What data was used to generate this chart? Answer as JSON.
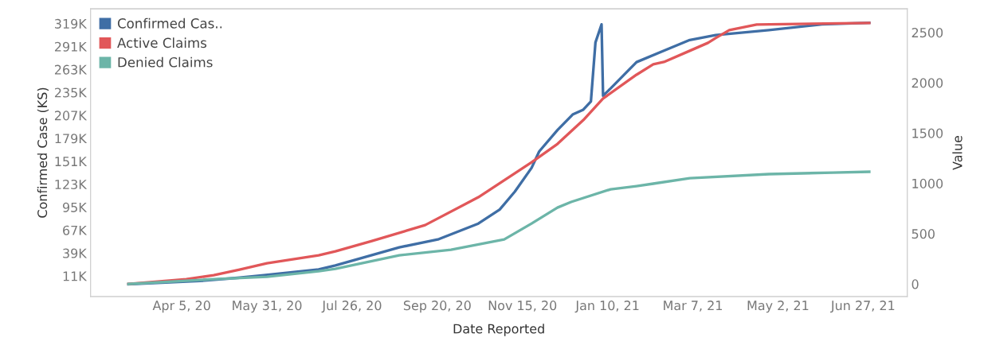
{
  "chart_data": {
    "type": "line",
    "xlabel": "Date Reported",
    "ylabel": "Confirmed Case (KS)",
    "y2label": "Value",
    "legend": "top left",
    "grid": false,
    "marker": "none",
    "line_style": "solid",
    "xlim": [
      "2020-02-05",
      "2021-07-26"
    ],
    "xticks": [
      {
        "value": "2020-04-05",
        "label": "Apr 5, 20"
      },
      {
        "value": "2020-05-31",
        "label": "May 31, 20"
      },
      {
        "value": "2020-07-26",
        "label": "Jul 26, 20"
      },
      {
        "value": "2020-09-20",
        "label": "Sep 20, 20"
      },
      {
        "value": "2020-11-15",
        "label": "Nov 15, 20"
      },
      {
        "value": "2021-01-10",
        "label": "Jan 10, 21"
      },
      {
        "value": "2021-03-07",
        "label": "Mar 7, 21"
      },
      {
        "value": "2021-05-02",
        "label": "May 2, 21"
      },
      {
        "value": "2021-06-27",
        "label": "Jun 27, 21"
      }
    ],
    "ylim": [
      -14000,
      337000
    ],
    "yticks": [
      {
        "value": 11000,
        "label": "11K"
      },
      {
        "value": 39000,
        "label": "39K"
      },
      {
        "value": 67000,
        "label": "67K"
      },
      {
        "value": 95000,
        "label": "95K"
      },
      {
        "value": 123000,
        "label": "123K"
      },
      {
        "value": 151000,
        "label": "151K"
      },
      {
        "value": 179000,
        "label": "179K"
      },
      {
        "value": 207000,
        "label": "207K"
      },
      {
        "value": 235000,
        "label": "235K"
      },
      {
        "value": 263000,
        "label": "263K"
      },
      {
        "value": 291000,
        "label": "291K"
      },
      {
        "value": 319000,
        "label": "319K"
      }
    ],
    "y2lim": [
      -125,
      2735
    ],
    "y2ticks": [
      0,
      500,
      1000,
      1500,
      2000,
      2500
    ],
    "series": [
      {
        "name": "Confirmed Cas..",
        "color": "#3f6ea5",
        "x": [
          "2020-03-01",
          "2020-04-17",
          "2020-05-13",
          "2020-05-29",
          "2020-07-04",
          "2020-07-15",
          "2020-08-26",
          "2020-09-21",
          "2020-10-17",
          "2020-10-31",
          "2020-11-10",
          "2020-11-21",
          "2020-11-26",
          "2020-12-08",
          "2020-12-18",
          "2020-12-25",
          "2020-12-30",
          "2021-01-02",
          "2021-01-06",
          "2021-01-07",
          "2021-01-12",
          "2021-01-29",
          "2021-02-16",
          "2021-03-05",
          "2021-03-22",
          "2021-04-26",
          "2021-05-31",
          "2021-07-01"
        ],
        "values": [
          1000,
          5000,
          9000,
          12000,
          19000,
          24000,
          46000,
          56000,
          75000,
          92000,
          114000,
          143000,
          163000,
          189000,
          208000,
          214000,
          224000,
          296000,
          318000,
          231000,
          240000,
          272000,
          286000,
          299000,
          305000,
          311000,
          318000,
          320000
        ]
      },
      {
        "name": "Active Claims",
        "color": "#e15759",
        "axis": "y2",
        "x": [
          "2020-03-01",
          "2020-04-08",
          "2020-04-26",
          "2020-05-13",
          "2020-05-31",
          "2020-07-04",
          "2020-07-15",
          "2020-08-08",
          "2020-09-12",
          "2020-10-17",
          "2020-11-21",
          "2020-12-08",
          "2020-12-25",
          "2021-01-07",
          "2021-01-29",
          "2021-02-09",
          "2021-02-16",
          "2021-03-05",
          "2021-03-17",
          "2021-03-22",
          "2021-03-31",
          "2021-04-18",
          "2021-07-01"
        ],
        "values": [
          0,
          47,
          87,
          142,
          206,
          285,
          324,
          427,
          585,
          862,
          1210,
          1392,
          1629,
          1843,
          2080,
          2183,
          2207,
          2318,
          2397,
          2444,
          2523,
          2579,
          2594
        ]
      },
      {
        "name": "Denied Claims",
        "color": "#6cb5a8",
        "axis": "y2",
        "x": [
          "2020-03-01",
          "2020-04-26",
          "2020-05-31",
          "2020-07-04",
          "2020-07-15",
          "2020-08-26",
          "2020-09-29",
          "2020-11-03",
          "2020-11-21",
          "2020-12-08",
          "2020-12-17",
          "2021-01-12",
          "2021-01-29",
          "2021-02-09",
          "2021-03-05",
          "2021-04-26",
          "2021-06-07",
          "2021-07-01"
        ],
        "values": [
          0,
          47,
          71,
          127,
          150,
          285,
          340,
          443,
          601,
          759,
          815,
          941,
          973,
          997,
          1052,
          1092,
          1107,
          1115
        ]
      }
    ]
  }
}
